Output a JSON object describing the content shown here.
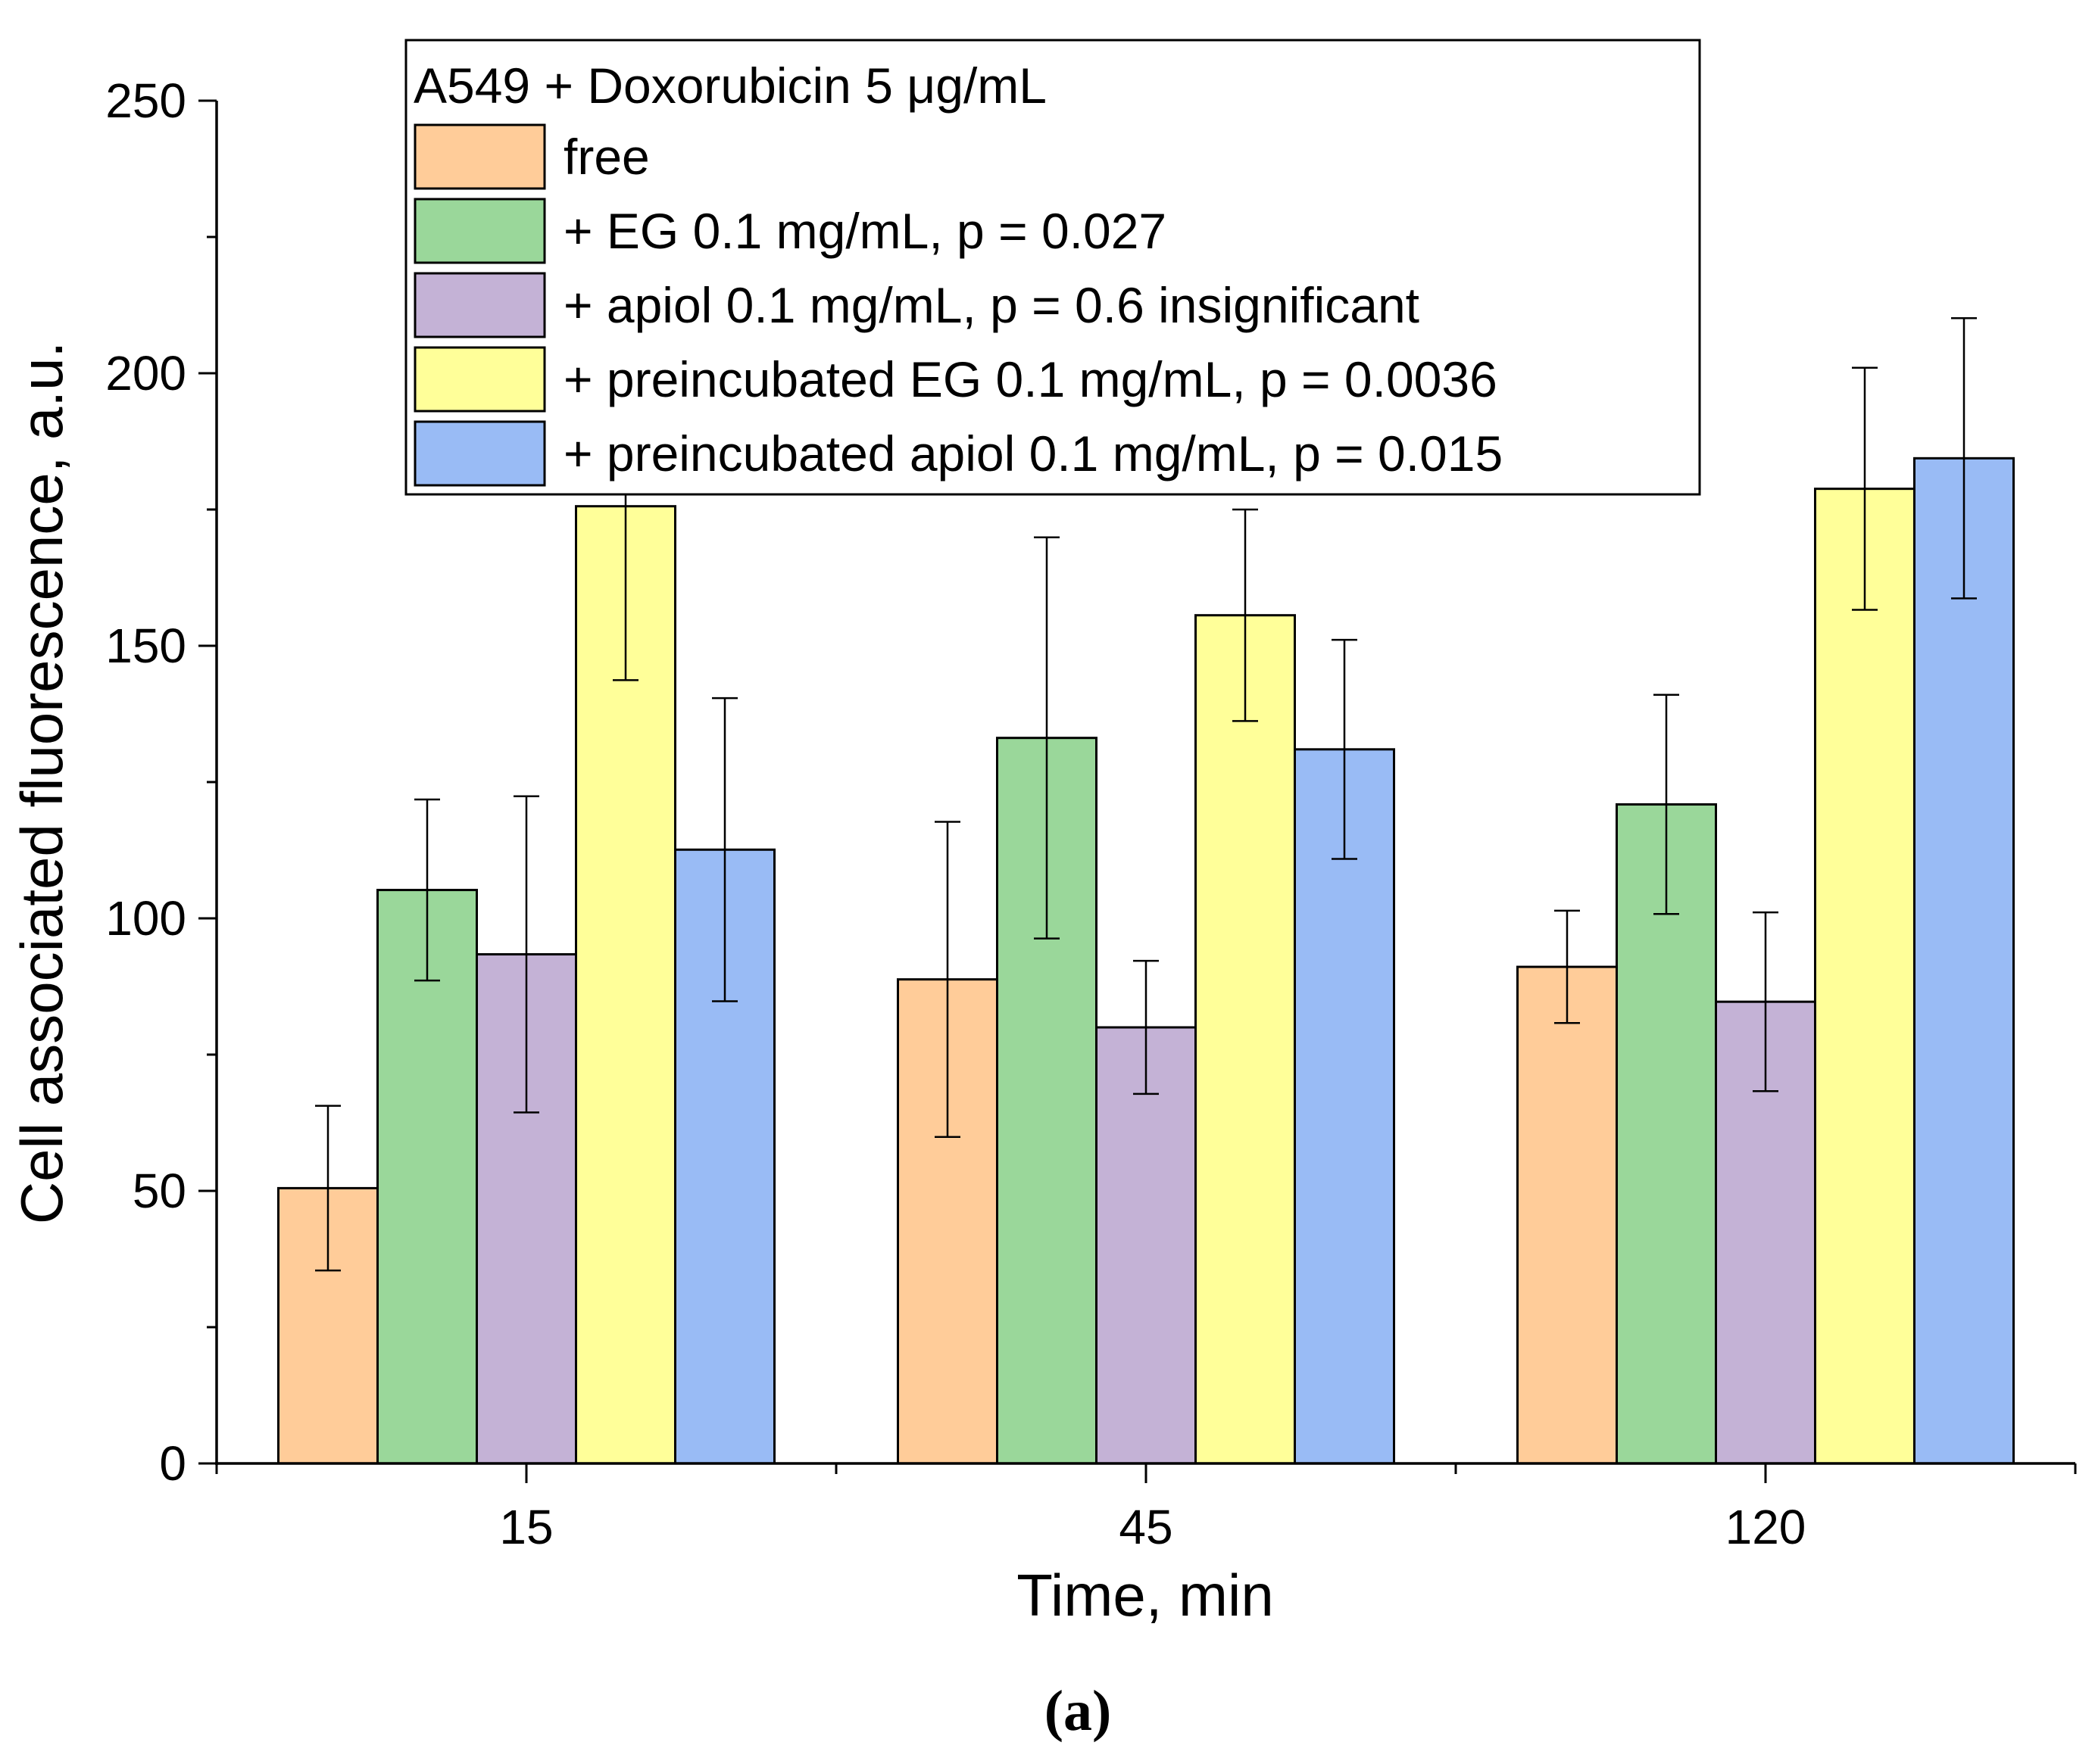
{
  "chart_data": {
    "type": "bar",
    "title": "",
    "xlabel": "Time, min",
    "ylabel": "Cell associated fluorescence, a.u.",
    "categories": [
      "15",
      "45",
      "120"
    ],
    "ylim": [
      0,
      250
    ],
    "y_ticks": [
      0,
      50,
      100,
      150,
      200,
      250
    ],
    "y_tick_labels": [
      "0",
      "50",
      "100",
      "150",
      "200",
      "250"
    ],
    "y_minor_step": 25,
    "grid": false,
    "legend": {
      "title": "A549 + Doxorubicin 5 μg/mL",
      "placement": "top-center"
    },
    "series": [
      {
        "name": "free",
        "color": "#FFCC99",
        "values": [
          50.5,
          88.8,
          91.1
        ],
        "errors": [
          15.1,
          28.9,
          10.3
        ]
      },
      {
        "name": "+ EG 0.1 mg/mL, p = 0.027",
        "color": "#9AD79A",
        "values": [
          105.2,
          133.1,
          120.9
        ],
        "errors": [
          16.6,
          36.8,
          20.1
        ]
      },
      {
        "name": "+ apiol 0.1 mg/mL, p = 0.6 insignificant",
        "color": "#C4B2D6",
        "values": [
          93.4,
          80.0,
          84.7
        ],
        "errors": [
          29.0,
          12.2,
          16.4
        ]
      },
      {
        "name": "+ preincubated EG 0.1 mg/mL, p = 0.0036",
        "color": "#FFFF99",
        "values": [
          175.6,
          155.6,
          178.8
        ],
        "errors": [
          31.9,
          19.4,
          22.2
        ]
      },
      {
        "name": "+ preincubated apiol 0.1 mg/mL, p = 0.015",
        "color": "#99BBF5",
        "values": [
          112.6,
          131.0,
          184.4
        ],
        "errors": [
          27.8,
          20.1,
          25.7
        ]
      }
    ]
  },
  "caption": "(a)"
}
